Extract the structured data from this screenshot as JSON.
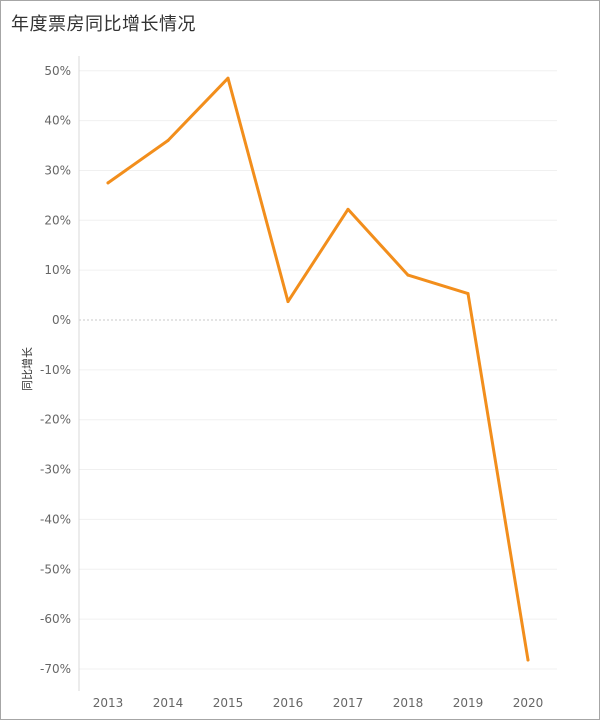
{
  "title": "年度票房同比增长情况",
  "chart_data": {
    "type": "line",
    "title": "年度票房同比增长情况",
    "xlabel": "",
    "ylabel": "同比增长",
    "categories": [
      "2013",
      "2014",
      "2015",
      "2016",
      "2017",
      "2018",
      "2019",
      "2020"
    ],
    "values": [
      27.5,
      36.0,
      48.5,
      3.7,
      22.2,
      9.0,
      5.3,
      -68.2
    ],
    "y_unit": "%",
    "ylim": [
      -72,
      53
    ],
    "yticks": [
      50,
      40,
      30,
      20,
      10,
      0,
      -10,
      -20,
      -30,
      -40,
      -50,
      -60,
      -70
    ],
    "ytick_labels": [
      "50%",
      "40%",
      "30%",
      "20%",
      "10%",
      "0%",
      "-10%",
      "-20%",
      "-30%",
      "-40%",
      "-50%",
      "-60%",
      "-70%"
    ],
    "grid": true,
    "zero_line": true,
    "colors": {
      "line": "#f28e1c",
      "grid": "#f0f0f0",
      "zero_line": "#c8c8c8",
      "axis": "#d9d9d9"
    }
  }
}
